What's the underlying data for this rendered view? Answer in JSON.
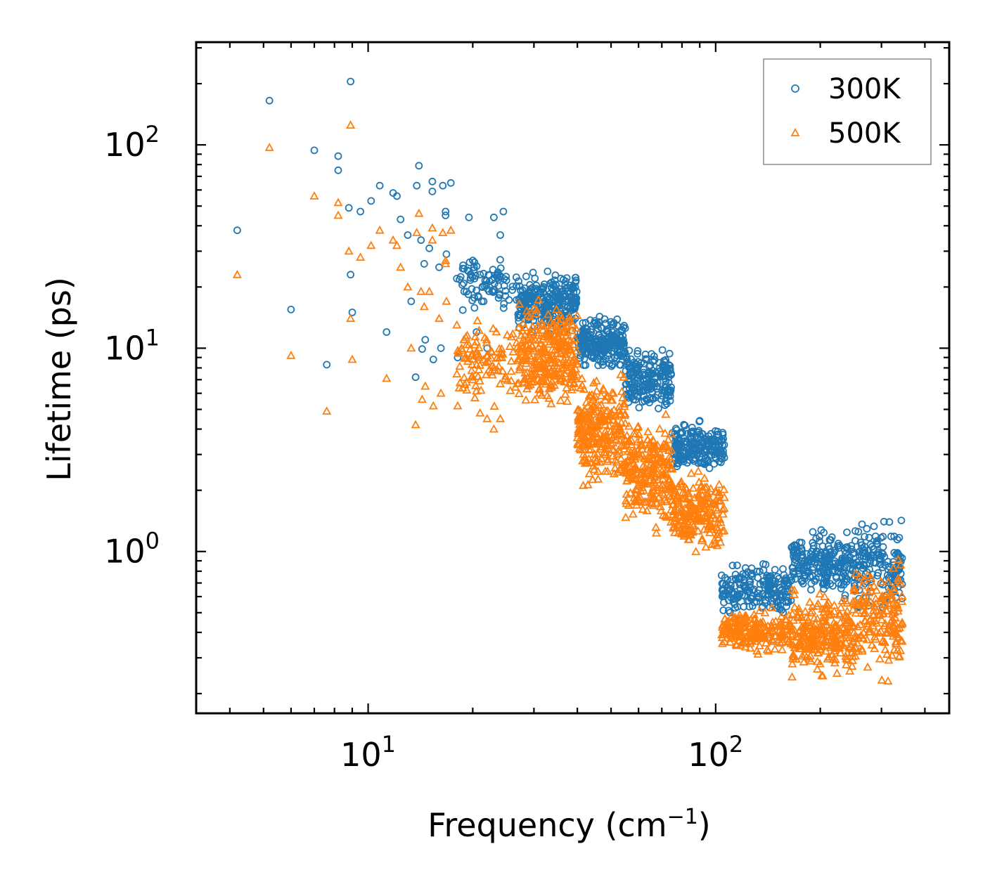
{
  "chart_data": {
    "type": "scatter",
    "xscale": "log",
    "yscale": "log",
    "xlim": [
      3.2,
      470
    ],
    "ylim": [
      0.16,
      320
    ],
    "xlabel": "Frequency (cm",
    "xlabel_sup": "−1",
    "xlabel_close": ")",
    "ylabel": "Lifetime (ps)",
    "x_ticks": [
      {
        "value": 10,
        "base": "10",
        "exp": "1"
      },
      {
        "value": 100,
        "base": "10",
        "exp": "2"
      }
    ],
    "y_ticks": [
      {
        "value": 1,
        "base": "10",
        "exp": "0"
      },
      {
        "value": 10,
        "base": "10",
        "exp": "1"
      },
      {
        "value": 100,
        "base": "10",
        "exp": "2"
      }
    ],
    "legend_position": "top-right",
    "series": [
      {
        "name": "300K",
        "marker": "circle",
        "color": "#1f77b4",
        "points": [
          [
            4.2,
            38
          ],
          [
            5.2,
            165
          ],
          [
            6.0,
            15.5
          ],
          [
            7.0,
            94
          ],
          [
            7.6,
            8.3
          ],
          [
            8.2,
            88
          ],
          [
            8.2,
            75
          ],
          [
            8.9,
            205
          ],
          [
            8.8,
            49
          ],
          [
            8.9,
            23
          ],
          [
            9.0,
            15
          ],
          [
            9.5,
            47
          ],
          [
            10.2,
            53
          ],
          [
            10.8,
            63
          ],
          [
            11.3,
            12
          ],
          [
            11.8,
            58
          ],
          [
            12.1,
            56
          ],
          [
            12.4,
            43
          ],
          [
            13.3,
            17
          ],
          [
            13.7,
            7.2
          ],
          [
            13.8,
            63
          ],
          [
            14.0,
            79
          ],
          [
            14.3,
            9.9
          ],
          [
            14.6,
            11
          ],
          [
            15.3,
            66
          ],
          [
            15.3,
            59
          ],
          [
            15.4,
            8.8
          ],
          [
            16.2,
            10
          ],
          [
            16.4,
            63
          ],
          [
            16.7,
            47
          ],
          [
            16.7,
            45
          ],
          [
            17.3,
            65
          ],
          [
            18.1,
            9
          ],
          [
            14.5,
            26
          ],
          [
            15,
            31
          ],
          [
            16,
            25
          ],
          [
            18,
            22
          ],
          [
            19.5,
            44
          ],
          [
            20,
            27
          ],
          [
            21,
            23
          ],
          [
            23,
            44
          ],
          [
            24,
            36
          ],
          [
            24.5,
            47
          ],
          [
            13,
            36
          ],
          [
            14.2,
            34
          ],
          [
            16.8,
            29
          ],
          [
            18.9,
            19
          ],
          [
            20.5,
            12
          ],
          [
            21.5,
            17
          ],
          [
            22,
            10
          ]
        ],
        "bands": [
          {
            "x": [
              18,
              27
            ],
            "lo": 14,
            "hi": 30,
            "n": 80
          },
          {
            "x": [
              27,
              40
            ],
            "lo": 11,
            "hi": 26,
            "n": 260
          },
          {
            "x": [
              40,
              55
            ],
            "lo": 7.5,
            "hi": 15,
            "n": 230
          },
          {
            "x": [
              55,
              75
            ],
            "lo": 4.2,
            "hi": 11,
            "n": 200
          },
          {
            "x": [
              75,
              106
            ],
            "lo": 2.3,
            "hi": 4.6,
            "n": 200
          },
          {
            "x": [
              104,
              165
            ],
            "lo": 0.45,
            "hi": 0.95,
            "n": 200
          },
          {
            "x": [
              165,
              250
            ],
            "lo": 0.55,
            "hi": 1.4,
            "n": 220
          },
          {
            "x": [
              250,
              345
            ],
            "lo": 0.45,
            "hi": 1.6,
            "n": 160
          }
        ]
      },
      {
        "name": "500K",
        "marker": "triangle",
        "color": "#ff7f0e",
        "points": [
          [
            4.2,
            23
          ],
          [
            5.2,
            97
          ],
          [
            6.0,
            9.2
          ],
          [
            7.0,
            56
          ],
          [
            7.6,
            4.9
          ],
          [
            8.2,
            52
          ],
          [
            8.2,
            45
          ],
          [
            8.9,
            125
          ],
          [
            8.8,
            30
          ],
          [
            8.9,
            14
          ],
          [
            9.0,
            8.8
          ],
          [
            9.5,
            28
          ],
          [
            10.2,
            32
          ],
          [
            10.8,
            38
          ],
          [
            11.3,
            7.1
          ],
          [
            11.8,
            34
          ],
          [
            12.1,
            32
          ],
          [
            12.4,
            25
          ],
          [
            13.3,
            10
          ],
          [
            13.7,
            4.2
          ],
          [
            13.8,
            37
          ],
          [
            14.0,
            46
          ],
          [
            14.3,
            5.6
          ],
          [
            14.6,
            6.5
          ],
          [
            15.3,
            39
          ],
          [
            15.3,
            34
          ],
          [
            15.4,
            5.2
          ],
          [
            16.2,
            6
          ],
          [
            16.4,
            37
          ],
          [
            16.7,
            27
          ],
          [
            16.7,
            26
          ],
          [
            17.3,
            38
          ],
          [
            18.1,
            5.2
          ],
          [
            14.5,
            16
          ],
          [
            15,
            19
          ],
          [
            16,
            14
          ],
          [
            18,
            13
          ],
          [
            19.5,
            10.4
          ],
          [
            20,
            7
          ],
          [
            21,
            4.8
          ],
          [
            22,
            4.5
          ],
          [
            23,
            4
          ],
          [
            24,
            4.5
          ],
          [
            13,
            20
          ],
          [
            14.2,
            19
          ],
          [
            16.8,
            17
          ],
          [
            18.9,
            11
          ]
        ],
        "bands": [
          {
            "x": [
              18,
              27
            ],
            "lo": 4.8,
            "hi": 16,
            "n": 100
          },
          {
            "x": [
              27,
              40
            ],
            "lo": 4.5,
            "hi": 19,
            "n": 300
          },
          {
            "x": [
              40,
              55
            ],
            "lo": 1.8,
            "hi": 8.5,
            "n": 260
          },
          {
            "x": [
              55,
              75
            ],
            "lo": 1.1,
            "hi": 5.5,
            "n": 240
          },
          {
            "x": [
              75,
              106
            ],
            "lo": 0.9,
            "hi": 2.7,
            "n": 220
          },
          {
            "x": [
              104,
              165
            ],
            "lo": 0.3,
            "hi": 0.55,
            "n": 200
          },
          {
            "x": [
              165,
              250
            ],
            "lo": 0.22,
            "hi": 0.7,
            "n": 260
          },
          {
            "x": [
              250,
              345
            ],
            "lo": 0.22,
            "hi": 1.0,
            "n": 170
          }
        ]
      }
    ]
  }
}
